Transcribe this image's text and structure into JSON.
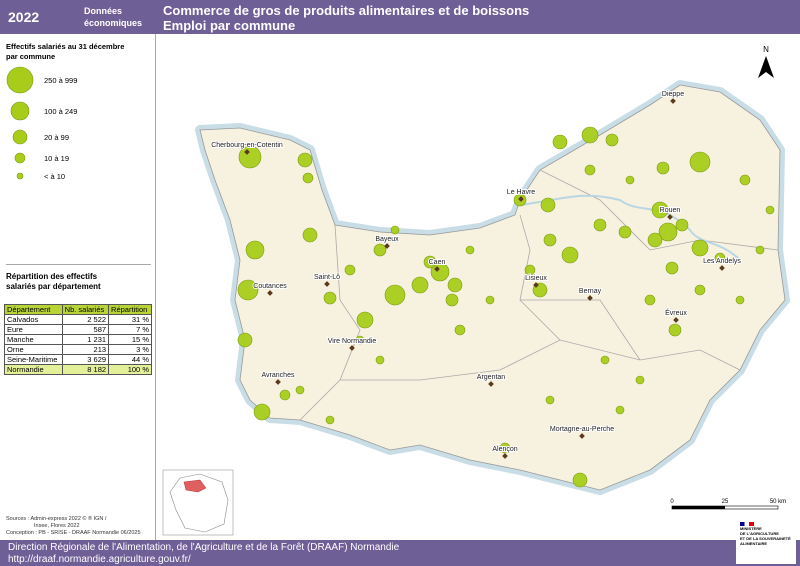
{
  "header": {
    "year": "2022",
    "label": [
      "Données",
      "économiques"
    ],
    "title": "Commerce de gros de produits alimentaires et de boissons",
    "subtitle": "Emploi par commune"
  },
  "legend": {
    "title": [
      "Effectifs salariés au 31 décembre",
      "par commune"
    ],
    "classes": [
      "250 à 999",
      "100 à 249",
      "20 à 99",
      "10 à 19",
      "< à 10"
    ]
  },
  "table": {
    "title": [
      "Répartition des effectifs",
      "salariés par département"
    ],
    "columns": [
      "Département",
      "Nb. salariés",
      "Répartition"
    ],
    "rows": [
      [
        "Calvados",
        "2 522",
        "31 %"
      ],
      [
        "Eure",
        "587",
        "7 %"
      ],
      [
        "Manche",
        "1 231",
        "15 %"
      ],
      [
        "Orne",
        "213",
        "3 %"
      ],
      [
        "Seine-Maritime",
        "3 629",
        "44 %"
      ]
    ],
    "total": [
      "Normandie",
      "8 182",
      "100 %"
    ]
  },
  "sources": [
    "Sources : Admin-express 2022 © ® IGN /",
    "Insee, Flores 2022",
    "Conception : PB - SRISE - DRAAF Normandie 06/2025"
  ],
  "map": {
    "north": "N",
    "scale": [
      "0",
      "25",
      "50 km"
    ],
    "cities": [
      "Cherbourg-en-Cotentin",
      "Dieppe",
      "Le Havre",
      "Rouen",
      "Bayeux",
      "Caen",
      "Saint-Lô",
      "Coutances",
      "Lisieux",
      "Bernay",
      "Les Andelys",
      "Évreux",
      "Vire Normandie",
      "Argentan",
      "Avranches",
      "Mortagne-au-Perche",
      "Alençon"
    ]
  },
  "footer": {
    "lines": [
      "Direction Régionale de l'Alimentation, de l'Agriculture et de la Forêt (DRAAF) Normandie",
      "http://draaf.normandie.agriculture.gouv.fr/"
    ],
    "logo": [
      "MINISTÈRE",
      "DE L'AGRICULTURE",
      "ET DE LA SOUVERAINETÉ",
      "ALIMENTAIRE"
    ]
  }
}
